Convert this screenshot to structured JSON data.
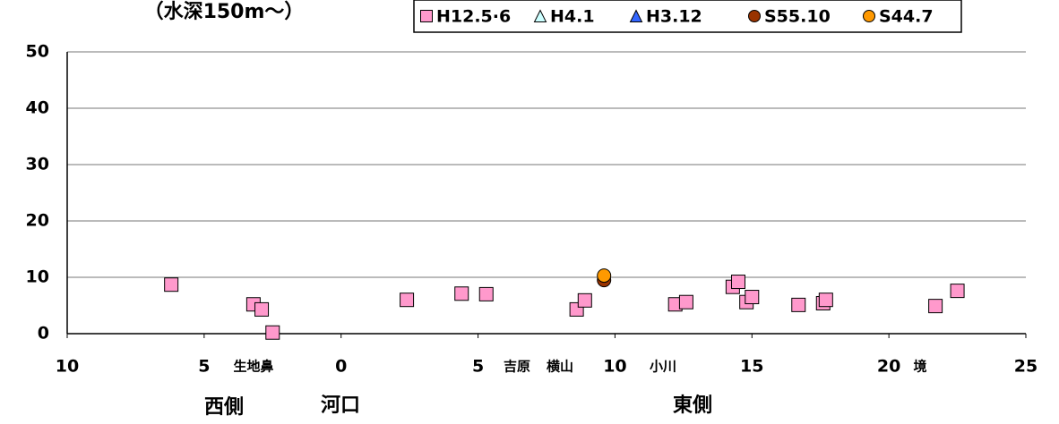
{
  "chart_data": {
    "type": "scatter",
    "title": "（水深150m～）",
    "annotations": [
      "生地鼻",
      "吉原",
      "横山",
      "小川",
      "境",
      "西側",
      "河口",
      "東側"
    ],
    "xlim": [
      -10,
      25
    ],
    "xticks": [
      {
        "value": -10,
        "label": "10"
      },
      {
        "value": -5,
        "label": "5"
      },
      0,
      5,
      10,
      15,
      20,
      25
    ],
    "ylim": [
      0,
      50
    ],
    "yticks": [
      0,
      10,
      20,
      30,
      40,
      50
    ],
    "grid": true,
    "legend": "top",
    "series": [
      {
        "name": "H12.5·6",
        "color": "#ff99cc",
        "marker": "square",
        "x": [
          -6.2,
          -3.2,
          -2.9,
          -2.5,
          2.4,
          4.4,
          5.3,
          8.6,
          8.9,
          12.2,
          12.6,
          14.3,
          14.5,
          14.8,
          15.0,
          16.7,
          17.6,
          17.7,
          21.7,
          22.5
        ],
        "values": [
          8.7,
          5.2,
          4.3,
          0.2,
          6.0,
          7.1,
          7.0,
          4.3,
          5.9,
          5.2,
          5.6,
          8.3,
          9.2,
          5.6,
          6.5,
          5.1,
          5.4,
          6.0,
          4.9,
          7.6
        ]
      },
      {
        "name": "H4.1",
        "color": "#ccffff",
        "marker": "triangle",
        "x": [],
        "values": []
      },
      {
        "name": "H3.12",
        "color": "#3366ff",
        "marker": "triangle",
        "x": [],
        "values": []
      },
      {
        "name": "S55.10",
        "color": "#993300",
        "marker": "circle",
        "x": [
          9.6
        ],
        "values": [
          9.5
        ]
      },
      {
        "name": "S44.7",
        "color": "#ff9900",
        "marker": "circle",
        "x": [
          9.6
        ],
        "values": [
          10.3
        ]
      }
    ]
  }
}
